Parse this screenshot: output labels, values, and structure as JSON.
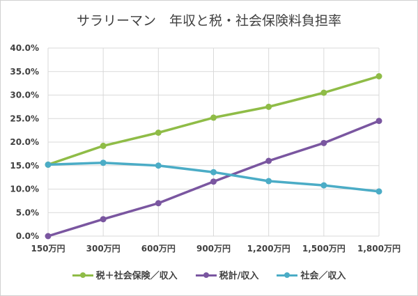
{
  "chart_data": {
    "type": "line",
    "title": "サラリーマン　年収と税・社会保険料負担率",
    "categories": [
      "150万円",
      "300万円",
      "600万円",
      "900万円",
      "1,200万円",
      "1,500万円",
      "1,800万円"
    ],
    "y_ticks": [
      "0.0%",
      "5.0%",
      "10.0%",
      "15.0%",
      "20.0%",
      "25.0%",
      "30.0%",
      "35.0%",
      "40.0%"
    ],
    "ylim": [
      0,
      40
    ],
    "grid": true,
    "legend_position": "bottom",
    "series": [
      {
        "name": "税＋社会保険／収入",
        "color": "#8fbc47",
        "values": [
          15.2,
          19.2,
          22.0,
          25.2,
          27.5,
          30.5,
          34.0
        ]
      },
      {
        "name": "税計/収入",
        "color": "#7a56a0",
        "values": [
          0.0,
          3.6,
          7.0,
          11.6,
          16.0,
          19.8,
          24.5
        ]
      },
      {
        "name": "社会／収入",
        "color": "#4bacc6",
        "values": [
          15.2,
          15.6,
          15.0,
          13.6,
          11.7,
          10.8,
          9.5
        ]
      }
    ]
  }
}
